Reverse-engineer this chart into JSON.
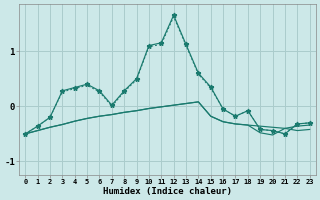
{
  "xlabel": "Humidex (Indice chaleur)",
  "bg_color": "#cce8e8",
  "grid_color": "#aacccc",
  "line_color": "#1a7a6e",
  "x": [
    0,
    1,
    2,
    3,
    4,
    5,
    6,
    7,
    8,
    9,
    10,
    11,
    12,
    13,
    14,
    15,
    16,
    17,
    18,
    19,
    20,
    21,
    22,
    23
  ],
  "series_main": [
    -0.5,
    -0.36,
    -0.2,
    0.28,
    0.34,
    0.4,
    0.28,
    0.02,
    0.28,
    0.5,
    1.1,
    1.15,
    1.65,
    1.12,
    0.6,
    0.35,
    -0.05,
    -0.18,
    -0.08,
    -0.42,
    -0.44,
    -0.5,
    -0.32,
    -0.3
  ],
  "series_flat1": [
    -0.5,
    -0.44,
    -0.38,
    -0.33,
    -0.27,
    -0.22,
    -0.18,
    -0.15,
    -0.11,
    -0.08,
    -0.04,
    -0.01,
    0.02,
    0.05,
    0.08,
    -0.18,
    -0.28,
    -0.32,
    -0.34,
    -0.36,
    -0.38,
    -0.4,
    -0.36,
    -0.34
  ],
  "series_flat2": [
    -0.5,
    -0.44,
    -0.38,
    -0.33,
    -0.27,
    -0.22,
    -0.18,
    -0.15,
    -0.11,
    -0.08,
    -0.04,
    -0.01,
    0.02,
    0.05,
    0.08,
    -0.18,
    -0.28,
    -0.32,
    -0.34,
    -0.48,
    -0.52,
    -0.4,
    -0.44,
    -0.42
  ],
  "series_dot": [
    -0.5,
    -0.36,
    -0.2,
    0.26,
    0.32,
    0.38,
    0.26,
    0.0,
    0.26,
    0.48,
    1.08,
    1.12,
    1.62,
    1.1,
    0.58,
    0.33,
    -0.05,
    -0.18,
    -0.08,
    -0.42,
    -0.44,
    -0.5,
    -0.32,
    -0.3
  ],
  "ylim": [
    -1.25,
    1.85
  ],
  "yticks": [
    -1,
    0,
    1
  ],
  "xticks": [
    0,
    1,
    2,
    3,
    4,
    5,
    6,
    7,
    8,
    9,
    10,
    11,
    12,
    13,
    14,
    15,
    16,
    17,
    18,
    19,
    20,
    21,
    22,
    23
  ]
}
